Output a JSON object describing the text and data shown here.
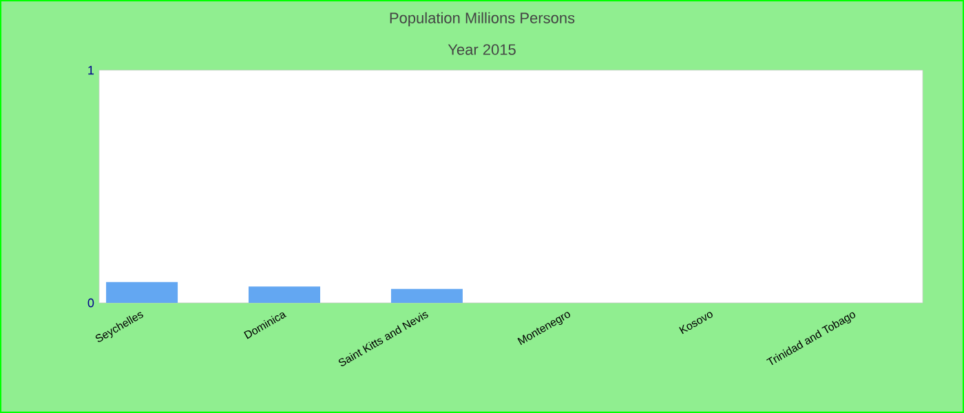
{
  "chart_data": {
    "type": "bar",
    "title": "Population Millions Persons",
    "subtitle": "Year 2015",
    "categories": [
      "Seychelles",
      "Dominica",
      "Saint Kitts and Nevis",
      "Montenegro",
      "Kosovo",
      "Trinidad and Tobago"
    ],
    "values": [
      0.09,
      0.07,
      0.06,
      null,
      null,
      null
    ],
    "color": "#63a7f2",
    "ylim": [
      0,
      1
    ],
    "yticks": [
      0,
      1
    ],
    "grid": false
  }
}
